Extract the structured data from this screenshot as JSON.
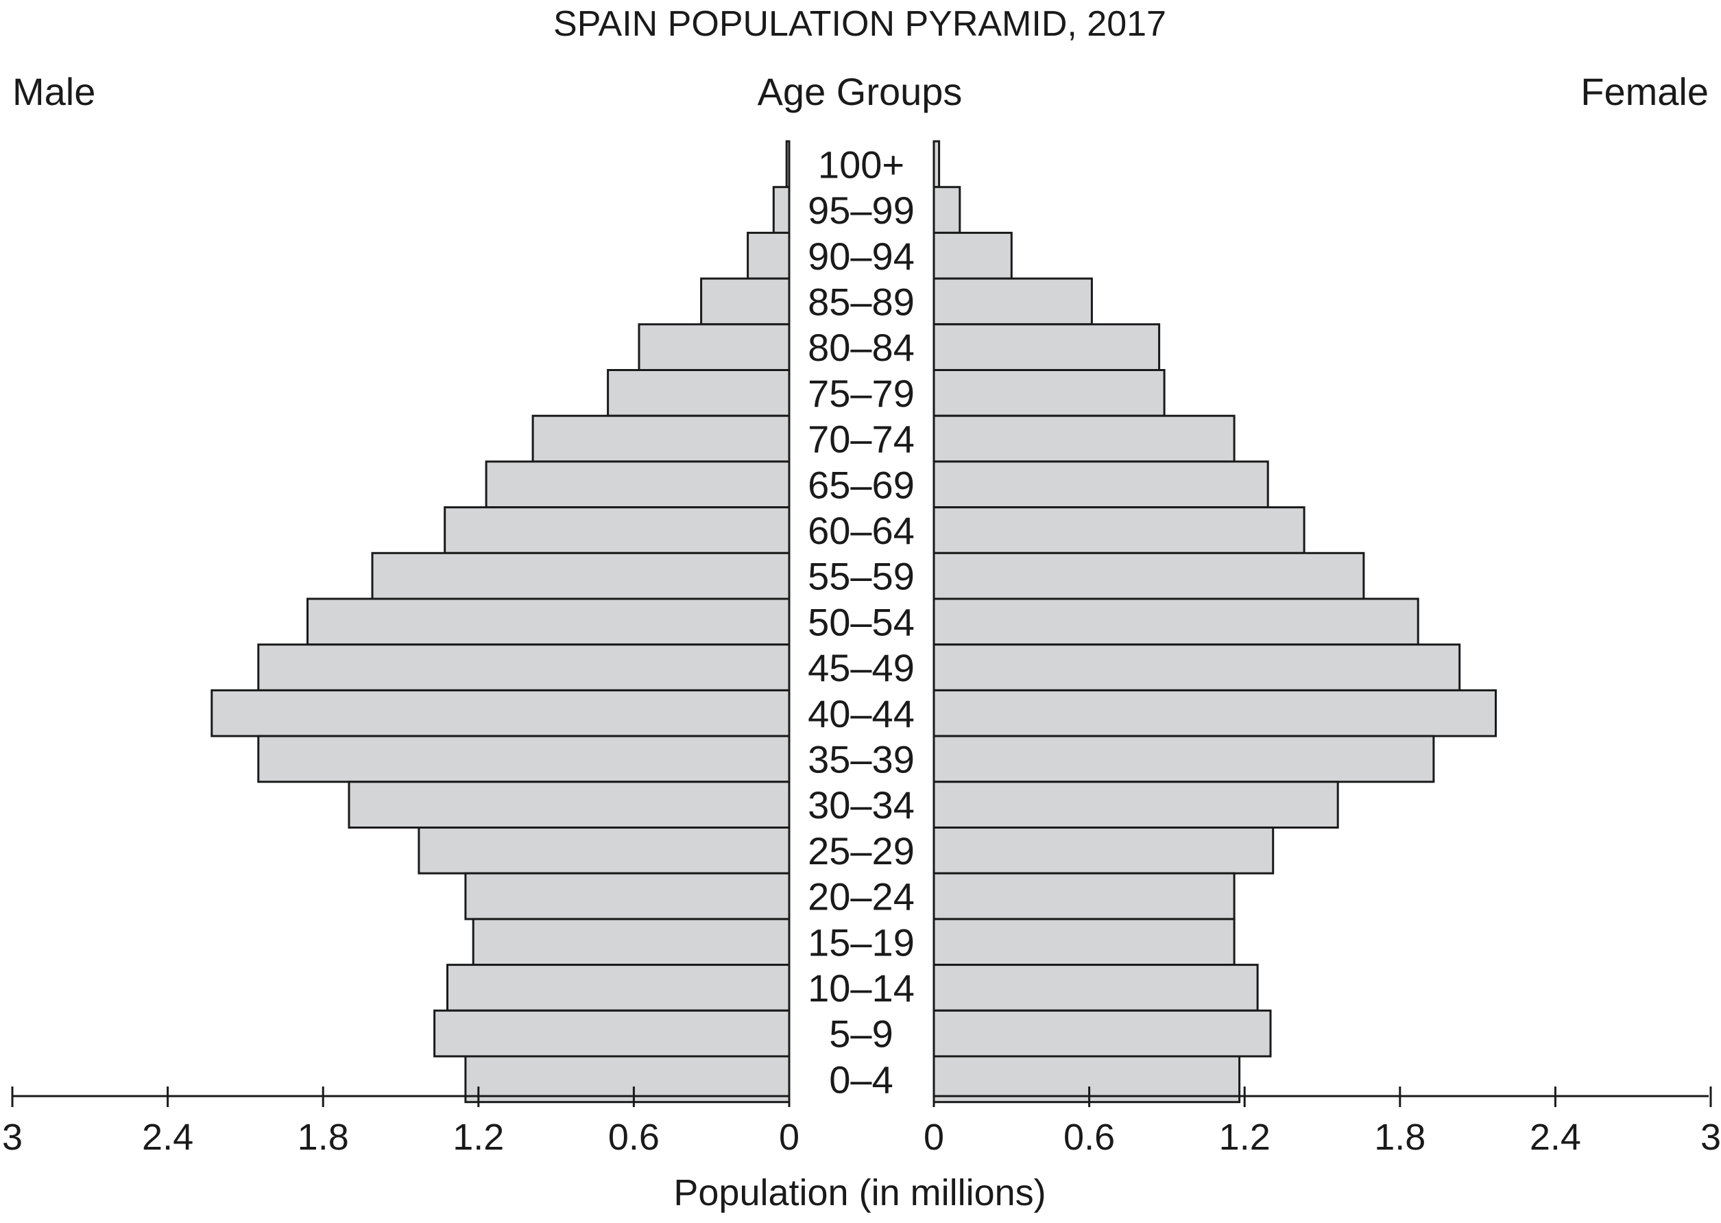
{
  "chart_data": {
    "type": "bar",
    "title": "SPAIN POPULATION PYRAMID, 2017",
    "left_label": "Male",
    "right_label": "Female",
    "center_label": "Age Groups",
    "xlabel": "Population (in millions)",
    "xlim": [
      0,
      3
    ],
    "ticks": [
      "3",
      "2.4",
      "1.8",
      "1.2",
      "0.6",
      "0"
    ],
    "tick_values": [
      3,
      2.4,
      1.8,
      1.2,
      0.6,
      0
    ],
    "right_ticks": [
      "0",
      "0.6",
      "1.2",
      "1.8",
      "2.4",
      "3"
    ],
    "right_tick_values": [
      0,
      0.6,
      1.2,
      1.8,
      2.4,
      3
    ],
    "categories": [
      "100+",
      "95–99",
      "90–94",
      "85–89",
      "80–84",
      "75–79",
      "70–74",
      "65–69",
      "60–64",
      "55–59",
      "50–54",
      "45–49",
      "40–44",
      "35–39",
      "30–34",
      "25–29",
      "20–24",
      "15–19",
      "10–14",
      "5–9",
      "0–4"
    ],
    "series": [
      {
        "name": "Male",
        "values": [
          0.01,
          0.06,
          0.16,
          0.34,
          0.58,
          0.7,
          0.99,
          1.17,
          1.33,
          1.61,
          1.86,
          2.05,
          2.23,
          2.05,
          1.7,
          1.43,
          1.25,
          1.22,
          1.32,
          1.37,
          1.25
        ]
      },
      {
        "name": "Female",
        "values": [
          0.02,
          0.1,
          0.3,
          0.61,
          0.87,
          0.89,
          1.16,
          1.29,
          1.43,
          1.66,
          1.87,
          2.03,
          2.17,
          1.93,
          1.56,
          1.31,
          1.16,
          1.16,
          1.25,
          1.3,
          1.18
        ]
      }
    ],
    "colors": {
      "bar_fill": "#d4d5d7",
      "bar_stroke": "#1a1a1a",
      "text": "#1a1a1a"
    },
    "grid": false
  }
}
